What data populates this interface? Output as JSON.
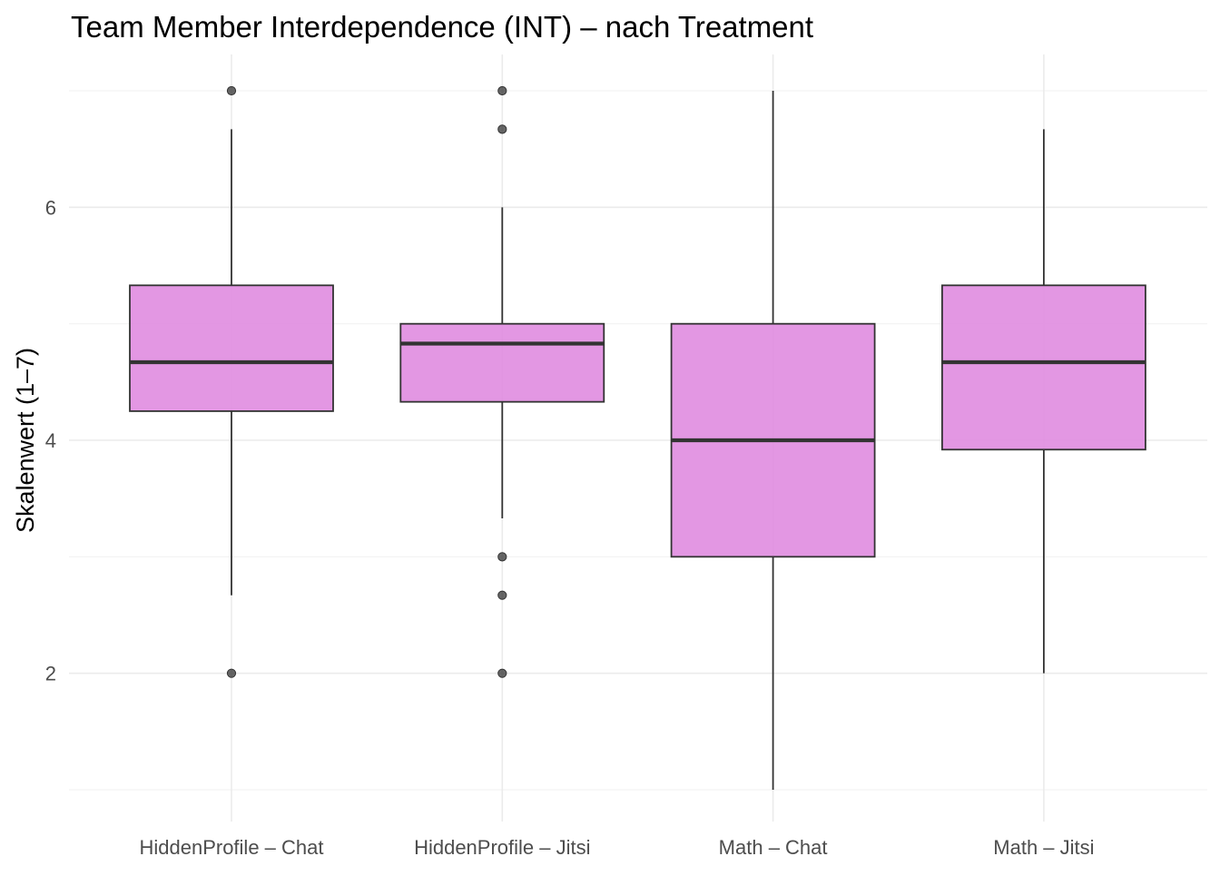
{
  "chart_data": {
    "type": "boxplot",
    "title": "Team Member Interdependence (INT) – nach Treatment",
    "xlabel": "",
    "ylabel": "Skalenwert (1–7)",
    "ylim": [
      0.9,
      7.25
    ],
    "yticks": [
      2,
      4,
      6
    ],
    "grid": true,
    "box_fill": "#e08ce0",
    "box_stroke": "#333333",
    "grid_major_color": "#ebebeb",
    "grid_minor_color": "#f3f3f3",
    "categories": [
      "HiddenProfile – Chat",
      "HiddenProfile – Jitsi",
      "Math – Chat",
      "Math – Jitsi"
    ],
    "boxes": [
      {
        "category": "HiddenProfile – Chat",
        "whisker_low": 2.67,
        "q1": 4.25,
        "median": 4.67,
        "q3": 5.33,
        "whisker_high": 6.67,
        "outliers": [
          2.0,
          7.0
        ]
      },
      {
        "category": "HiddenProfile – Jitsi",
        "whisker_low": 3.33,
        "q1": 4.33,
        "median": 4.83,
        "q3": 5.0,
        "whisker_high": 6.0,
        "outliers": [
          2.0,
          2.67,
          3.0,
          6.67,
          7.0
        ]
      },
      {
        "category": "Math – Chat",
        "whisker_low": 1.0,
        "q1": 3.0,
        "median": 4.0,
        "q3": 5.0,
        "whisker_high": 7.0,
        "outliers": []
      },
      {
        "category": "Math – Jitsi",
        "whisker_low": 2.0,
        "q1": 3.92,
        "median": 4.67,
        "q3": 5.33,
        "whisker_high": 6.67,
        "outliers": []
      }
    ]
  }
}
